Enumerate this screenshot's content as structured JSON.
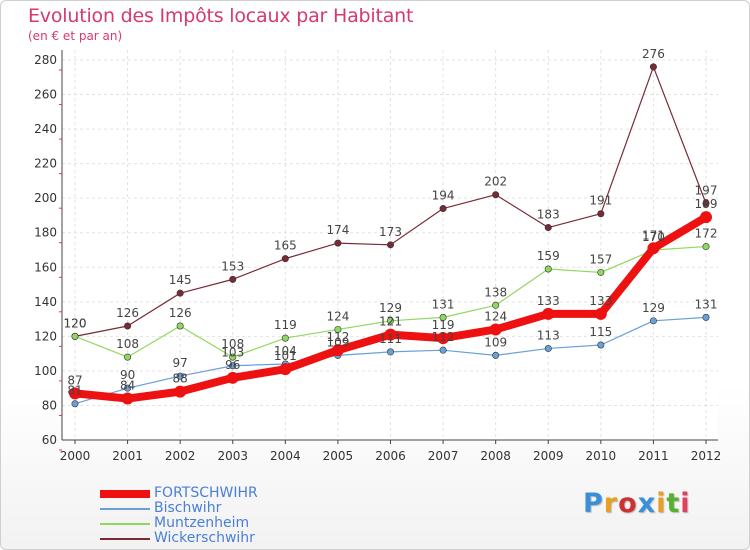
{
  "header": {
    "title": "Evolution des Impôts locaux par Habitant",
    "subtitle": "(en € et par an)"
  },
  "logo": {
    "text": "Proxiti",
    "letter_colors": [
      "#3a8fd8",
      "#e8a020",
      "#d03030",
      "#3a8fd8",
      "#e8a020",
      "#58b030",
      "#e04060"
    ]
  },
  "chart_data": {
    "type": "line",
    "x": [
      2000,
      2001,
      2002,
      2003,
      2004,
      2005,
      2006,
      2007,
      2008,
      2009,
      2010,
      2011,
      2012
    ],
    "ylim": [
      60,
      280
    ],
    "yticks": [
      60,
      80,
      100,
      120,
      140,
      160,
      180,
      200,
      220,
      240,
      260,
      280
    ],
    "grid": true,
    "legend_position": "bottom-left",
    "series": [
      {
        "name": "Wickerschwihr",
        "color": "#7a2a35",
        "width": 1.2,
        "values": [
          120,
          126,
          145,
          153,
          165,
          174,
          173,
          194,
          202,
          183,
          191,
          276,
          197
        ],
        "labels": [
          "120",
          "126",
          "145",
          "153",
          "165",
          "174",
          "173",
          "194",
          "202",
          "183",
          "191",
          "276",
          "197"
        ]
      },
      {
        "name": "Muntzenheim",
        "color": "#90d860",
        "width": 1.2,
        "values": [
          120,
          108,
          126,
          108,
          119,
          124,
          129,
          131,
          138,
          159,
          157,
          170,
          172
        ],
        "labels": [
          "120",
          "108",
          "126",
          "108",
          "119",
          "124",
          "129",
          "131",
          "138",
          "159",
          "157",
          "170",
          "172"
        ]
      },
      {
        "name": "Bischwihr",
        "color": "#6aa0d8",
        "width": 1.2,
        "values": [
          81,
          90,
          97,
          103,
          104,
          109,
          111,
          112,
          109,
          113,
          115,
          129,
          131
        ],
        "labels": [
          "81",
          "90",
          "97",
          "103",
          "104",
          "109",
          "111",
          "112",
          "109",
          "113",
          "115",
          "129",
          "131"
        ]
      },
      {
        "name": "FORTSCHWIHR",
        "color": "#ee1111",
        "width": 8,
        "values": [
          87,
          84,
          88,
          96,
          101,
          112,
          121,
          119,
          124,
          133,
          133,
          171,
          189
        ],
        "labels": [
          "87",
          "84",
          "88",
          "96",
          "101",
          "112",
          "121",
          "119",
          "124",
          "133",
          "133",
          "171",
          "189"
        ]
      }
    ],
    "legend_order": [
      "FORTSCHWIHR",
      "Bischwihr",
      "Muntzenheim",
      "Wickerschwihr"
    ]
  }
}
